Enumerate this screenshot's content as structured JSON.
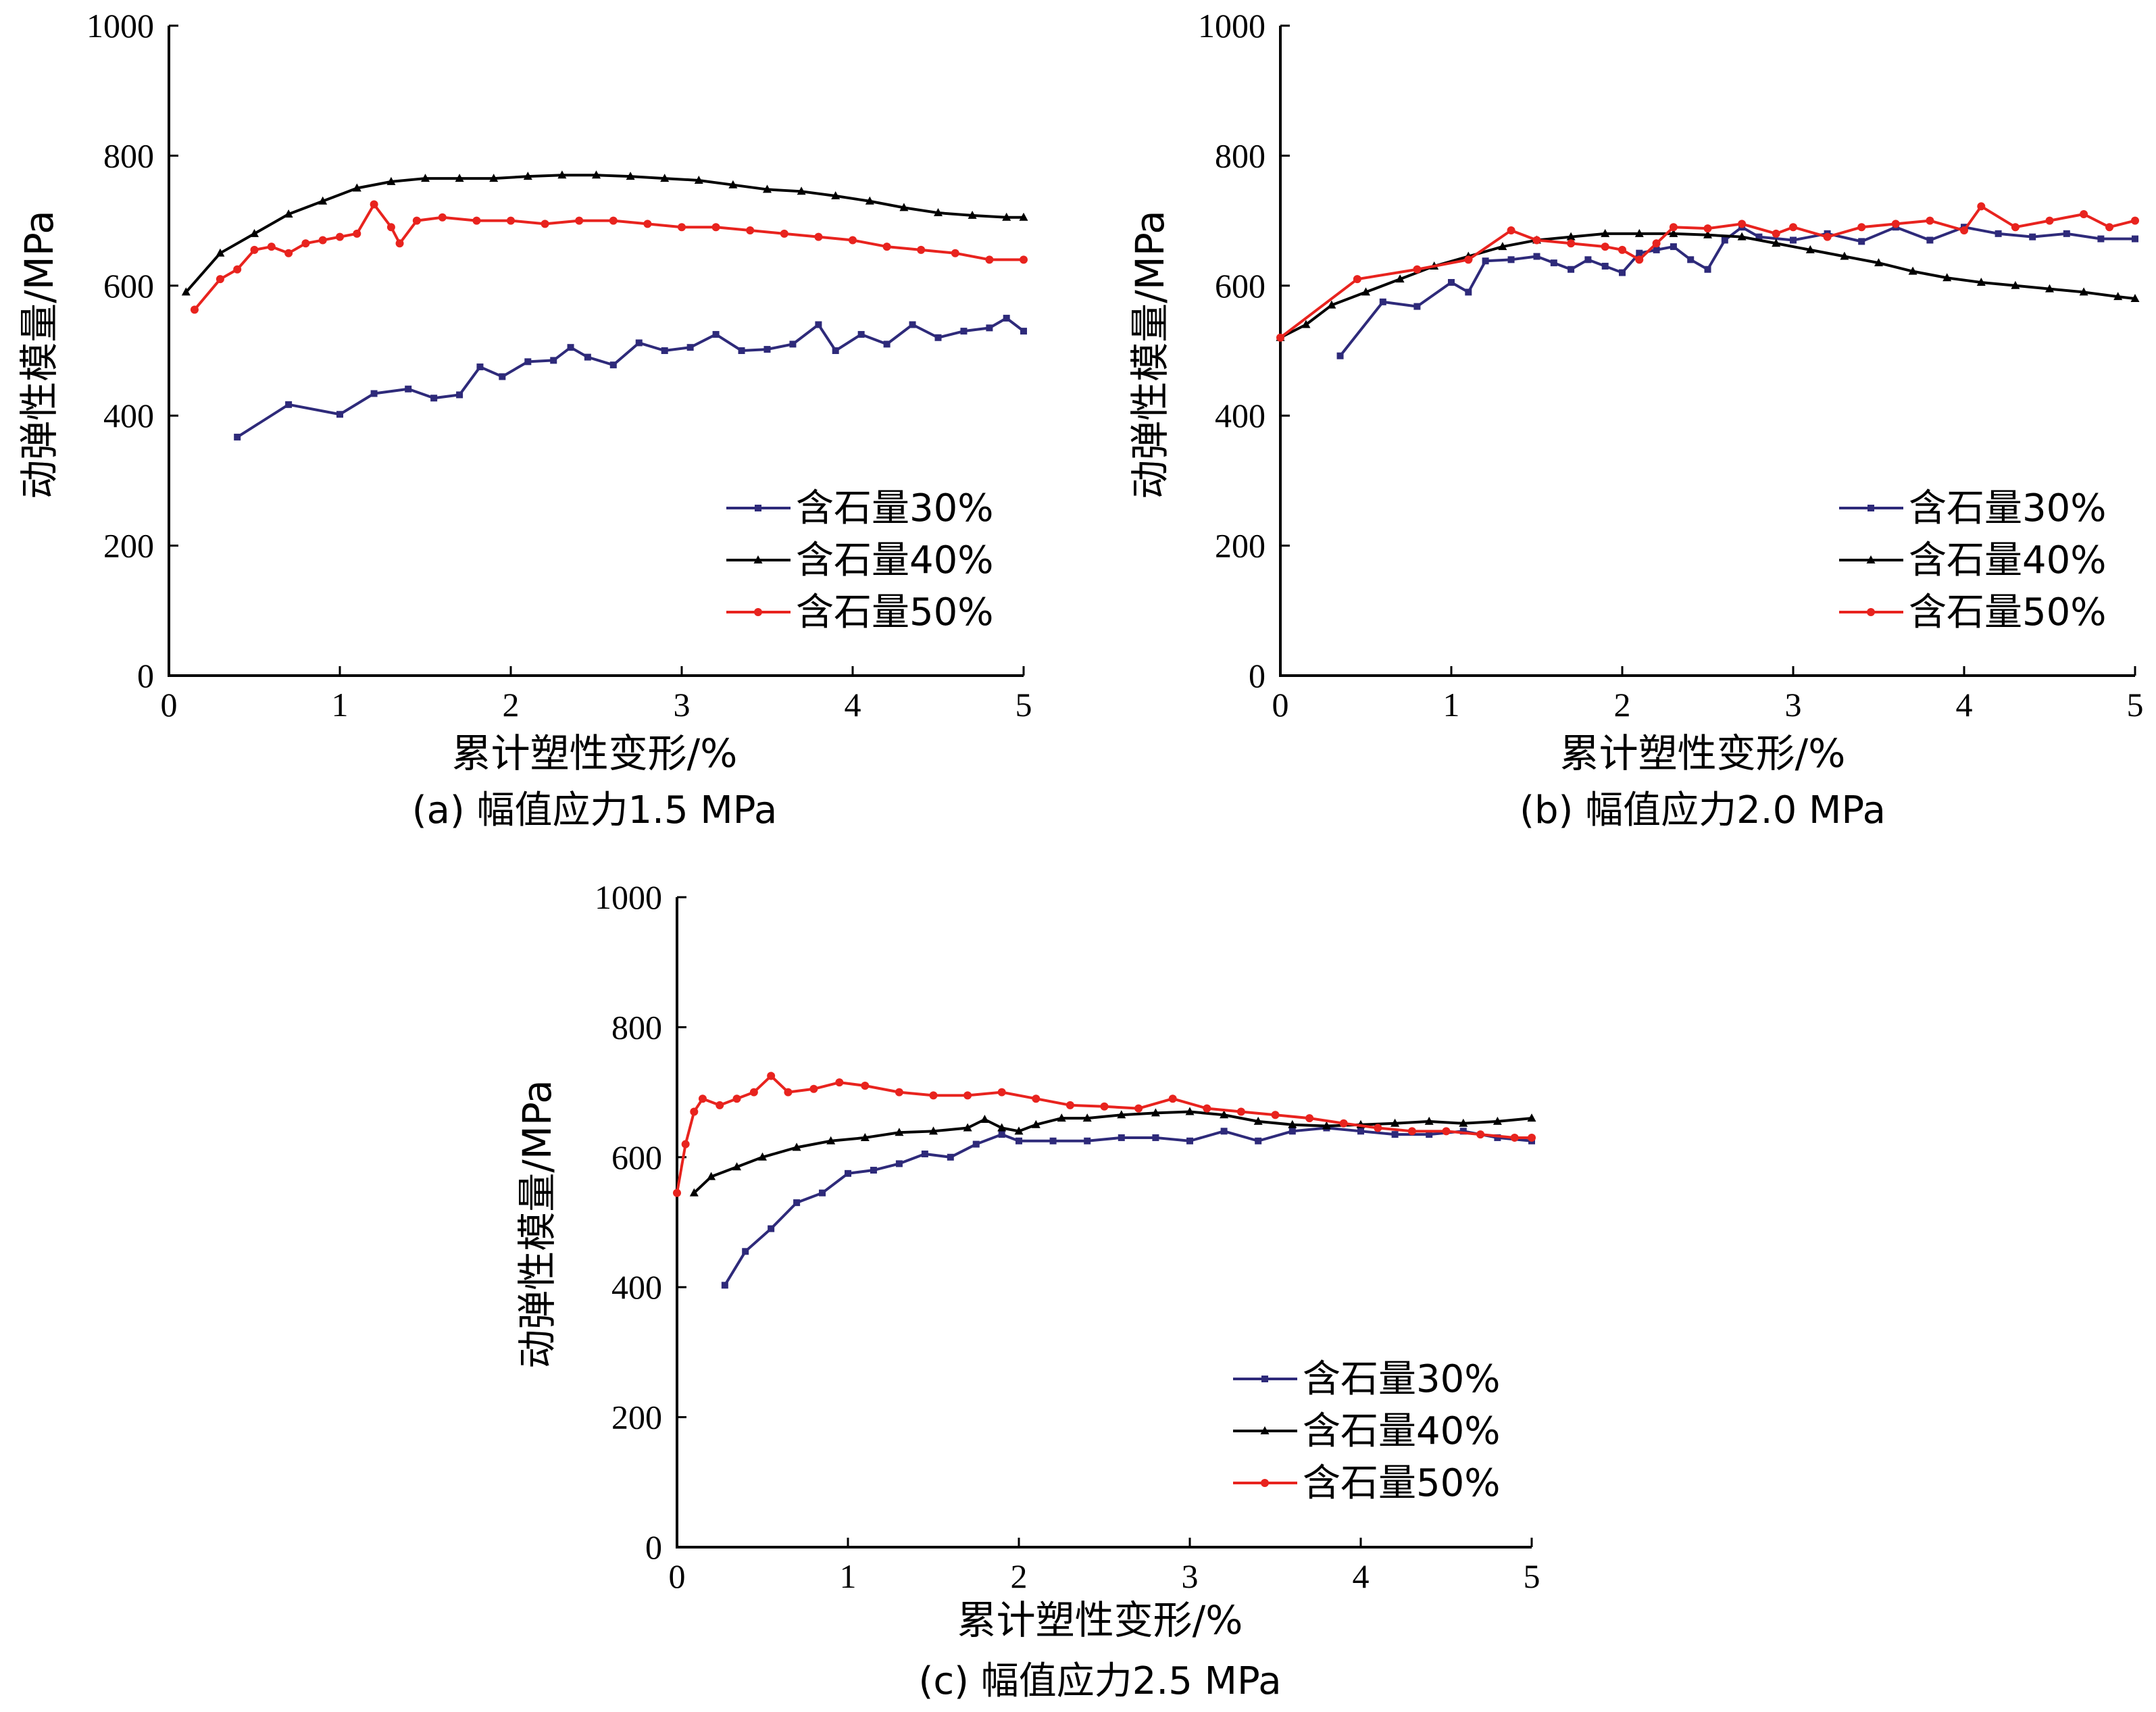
{
  "panels": [
    {
      "caption": "(a) 幅值应力1.5 MPa",
      "xlabel": "累计塑性变形/%",
      "ylabel": "动弹性模量/MPa",
      "legend": [
        "含石量30%",
        "含石量40%",
        "含石量50%"
      ]
    },
    {
      "caption": "(b) 幅值应力2.0 MPa",
      "xlabel": "累计塑性变形/%",
      "ylabel": "动弹性模量/MPa",
      "legend": [
        "含石量30%",
        "含石量40%",
        "含石量50%"
      ]
    },
    {
      "caption": "(c) 幅值应力2.5 MPa",
      "xlabel": "累计塑性变形/%",
      "ylabel": "动弹性模量/MPa",
      "legend": [
        "含石量30%",
        "含石量40%",
        "含石量50%"
      ]
    }
  ],
  "colors": {
    "s30": "#2e2a7a",
    "s40": "#000000",
    "s50": "#e8231e"
  },
  "chart_data": [
    {
      "type": "line",
      "title": "(a) 幅值应力1.5 MPa",
      "xlabel": "累计塑性变形/%",
      "ylabel": "动弹性模量/MPa",
      "xlim": [
        0,
        5
      ],
      "ylim": [
        0,
        1000
      ],
      "xticks": [
        "0",
        "1",
        "2",
        "3",
        "4",
        "5"
      ],
      "yticks": [
        "0",
        "200",
        "400",
        "600",
        "800",
        "1000"
      ],
      "grid": false,
      "legend_position": "bottom-right",
      "series": [
        {
          "name": "含石量30%",
          "marker": "square",
          "x": [
            0.4,
            0.7,
            1.0,
            1.2,
            1.4,
            1.55,
            1.7,
            1.82,
            1.95,
            2.1,
            2.25,
            2.35,
            2.45,
            2.6,
            2.75,
            2.9,
            3.05,
            3.2,
            3.35,
            3.5,
            3.65,
            3.8,
            3.9,
            4.05,
            4.2,
            4.35,
            4.5,
            4.65,
            4.8,
            4.9,
            5.0
          ],
          "y": [
            367,
            417,
            402,
            434,
            441,
            427,
            432,
            475,
            460,
            483,
            485,
            505,
            490,
            478,
            512,
            500,
            505,
            525,
            500,
            502,
            510,
            540,
            500,
            525,
            510,
            540,
            520,
            530,
            535,
            550,
            530
          ]
        },
        {
          "name": "含石量40%",
          "marker": "triangle",
          "x": [
            0.1,
            0.3,
            0.5,
            0.7,
            0.9,
            1.1,
            1.3,
            1.5,
            1.7,
            1.9,
            2.1,
            2.3,
            2.5,
            2.7,
            2.9,
            3.1,
            3.3,
            3.5,
            3.7,
            3.9,
            4.1,
            4.3,
            4.5,
            4.7,
            4.9,
            5.0
          ],
          "y": [
            590,
            650,
            680,
            710,
            730,
            750,
            760,
            765,
            765,
            765,
            768,
            770,
            770,
            768,
            765,
            762,
            755,
            748,
            745,
            738,
            730,
            720,
            712,
            708,
            705,
            705
          ]
        },
        {
          "name": "含石量50%",
          "marker": "circle",
          "x": [
            0.15,
            0.3,
            0.4,
            0.5,
            0.6,
            0.7,
            0.8,
            0.9,
            1.0,
            1.1,
            1.2,
            1.3,
            1.35,
            1.45,
            1.6,
            1.8,
            2.0,
            2.2,
            2.4,
            2.6,
            2.8,
            3.0,
            3.2,
            3.4,
            3.6,
            3.8,
            4.0,
            4.2,
            4.4,
            4.6,
            4.8,
            5.0
          ],
          "y": [
            563,
            610,
            625,
            655,
            660,
            650,
            665,
            670,
            675,
            680,
            725,
            690,
            665,
            700,
            705,
            700,
            700,
            695,
            700,
            700,
            695,
            690,
            690,
            685,
            680,
            675,
            670,
            660,
            655,
            650,
            640,
            640
          ]
        }
      ]
    },
    {
      "type": "line",
      "title": "(b) 幅值应力2.0 MPa",
      "xlabel": "累计塑性变形/%",
      "ylabel": "动弹性模量/MPa",
      "xlim": [
        0,
        5
      ],
      "ylim": [
        0,
        1000
      ],
      "xticks": [
        "0",
        "1",
        "2",
        "3",
        "4",
        "5"
      ],
      "yticks": [
        "0",
        "200",
        "400",
        "600",
        "800",
        "1000"
      ],
      "grid": false,
      "legend_position": "bottom-right",
      "series": [
        {
          "name": "含石量30%",
          "marker": "square",
          "x": [
            0.35,
            0.6,
            0.8,
            1.0,
            1.1,
            1.2,
            1.35,
            1.5,
            1.6,
            1.7,
            1.8,
            1.9,
            2.0,
            2.1,
            2.2,
            2.3,
            2.4,
            2.5,
            2.6,
            2.7,
            2.8,
            3.0,
            3.2,
            3.4,
            3.6,
            3.8,
            4.0,
            4.2,
            4.4,
            4.6,
            4.8,
            5.0
          ],
          "y": [
            492,
            575,
            568,
            605,
            590,
            638,
            640,
            645,
            635,
            625,
            640,
            630,
            620,
            650,
            655,
            660,
            640,
            625,
            670,
            690,
            675,
            670,
            680,
            668,
            690,
            670,
            690,
            680,
            675,
            680,
            672,
            672
          ]
        },
        {
          "name": "含石量40%",
          "marker": "triangle",
          "x": [
            0.0,
            0.15,
            0.3,
            0.5,
            0.7,
            0.9,
            1.1,
            1.3,
            1.5,
            1.7,
            1.9,
            2.1,
            2.3,
            2.5,
            2.7,
            2.9,
            3.1,
            3.3,
            3.5,
            3.7,
            3.9,
            4.1,
            4.3,
            4.5,
            4.7,
            4.9,
            5.0
          ],
          "y": [
            520,
            540,
            570,
            590,
            610,
            630,
            645,
            660,
            670,
            675,
            680,
            680,
            680,
            678,
            675,
            665,
            655,
            645,
            635,
            622,
            612,
            605,
            600,
            595,
            590,
            583,
            580
          ]
        },
        {
          "name": "含石量50%",
          "marker": "circle",
          "x": [
            0.0,
            0.45,
            0.8,
            1.1,
            1.35,
            1.5,
            1.7,
            1.9,
            2.0,
            2.1,
            2.2,
            2.3,
            2.5,
            2.7,
            2.9,
            3.0,
            3.2,
            3.4,
            3.6,
            3.8,
            4.0,
            4.1,
            4.3,
            4.5,
            4.7,
            4.85,
            5.0
          ],
          "y": [
            520,
            610,
            625,
            640,
            685,
            670,
            665,
            660,
            655,
            640,
            665,
            690,
            688,
            695,
            680,
            690,
            675,
            690,
            695,
            700,
            685,
            722,
            690,
            700,
            710,
            690,
            700
          ]
        }
      ]
    },
    {
      "type": "line",
      "title": "(c) 幅值应力2.5 MPa",
      "xlabel": "累计塑性变形/%",
      "ylabel": "动弹性模量/MPa",
      "xlim": [
        0,
        5
      ],
      "ylim": [
        0,
        1000
      ],
      "xticks": [
        "0",
        "1",
        "2",
        "3",
        "4",
        "5"
      ],
      "yticks": [
        "0",
        "200",
        "400",
        "600",
        "800",
        "1000"
      ],
      "grid": false,
      "legend_position": "bottom-right",
      "series": [
        {
          "name": "含石量30%",
          "marker": "square",
          "x": [
            0.28,
            0.4,
            0.55,
            0.7,
            0.85,
            1.0,
            1.15,
            1.3,
            1.45,
            1.6,
            1.75,
            1.9,
            2.0,
            2.2,
            2.4,
            2.6,
            2.8,
            3.0,
            3.2,
            3.4,
            3.6,
            3.8,
            4.0,
            4.2,
            4.4,
            4.6,
            4.8,
            5.0
          ],
          "y": [
            403,
            455,
            490,
            530,
            545,
            575,
            580,
            590,
            605,
            600,
            620,
            635,
            625,
            625,
            625,
            630,
            630,
            625,
            640,
            625,
            640,
            645,
            640,
            635,
            635,
            640,
            630,
            625
          ]
        },
        {
          "name": "含石量40%",
          "marker": "triangle",
          "x": [
            0.1,
            0.2,
            0.35,
            0.5,
            0.7,
            0.9,
            1.1,
            1.3,
            1.5,
            1.7,
            1.8,
            1.9,
            2.0,
            2.1,
            2.25,
            2.4,
            2.6,
            2.8,
            3.0,
            3.2,
            3.4,
            3.6,
            3.8,
            4.0,
            4.2,
            4.4,
            4.6,
            4.8,
            5.0
          ],
          "y": [
            545,
            570,
            585,
            600,
            615,
            625,
            630,
            638,
            640,
            645,
            658,
            645,
            640,
            650,
            660,
            660,
            665,
            668,
            670,
            665,
            655,
            650,
            648,
            650,
            652,
            655,
            652,
            655,
            660
          ]
        },
        {
          "name": "含石量50%",
          "marker": "circle",
          "x": [
            0.0,
            0.05,
            0.1,
            0.15,
            0.25,
            0.35,
            0.45,
            0.55,
            0.65,
            0.8,
            0.95,
            1.1,
            1.3,
            1.5,
            1.7,
            1.9,
            2.1,
            2.3,
            2.5,
            2.7,
            2.9,
            3.1,
            3.3,
            3.5,
            3.7,
            3.9,
            4.1,
            4.3,
            4.5,
            4.7,
            4.9,
            5.0
          ],
          "y": [
            545,
            620,
            670,
            690,
            680,
            690,
            700,
            725,
            700,
            705,
            715,
            710,
            700,
            695,
            695,
            700,
            690,
            680,
            678,
            675,
            690,
            675,
            670,
            665,
            660,
            652,
            645,
            640,
            640,
            635,
            630,
            630
          ]
        }
      ]
    }
  ]
}
